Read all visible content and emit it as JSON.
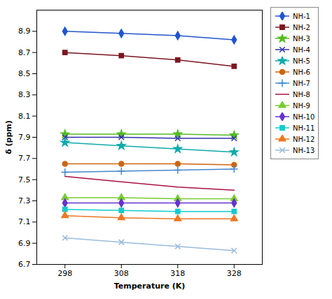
{
  "chart_data": {
    "type": "line",
    "x": [
      298,
      308,
      318,
      328
    ],
    "xlabel": "Temperature (K)",
    "ylabel": "δ (ppm)",
    "xlim": [
      293,
      333
    ],
    "xticks": [
      298,
      308,
      318,
      328
    ],
    "ylim": [
      6.7,
      9.1
    ],
    "yticks": [
      6.7,
      6.9,
      7.1,
      7.3,
      7.5,
      7.7,
      7.9,
      8.1,
      8.3,
      8.5,
      8.7,
      8.9
    ],
    "grid": false,
    "legend": "upper right",
    "series": [
      {
        "name": "NH-1",
        "color": "#2255CC",
        "marker": "diamond",
        "values": [
          8.9,
          8.88,
          8.86,
          8.82
        ]
      },
      {
        "name": "NH-2",
        "color": "#7B1520",
        "marker": "square",
        "values": [
          8.7,
          8.67,
          8.63,
          8.57
        ]
      },
      {
        "name": "NH-3",
        "color": "#55BB22",
        "marker": "star",
        "values": [
          7.93,
          7.93,
          7.93,
          7.92
        ]
      },
      {
        "name": "NH-4",
        "color": "#3333AA",
        "marker": "x",
        "values": [
          7.9,
          7.9,
          7.89,
          7.89
        ]
      },
      {
        "name": "NH-5",
        "color": "#11AAAA",
        "marker": "star",
        "values": [
          7.85,
          7.82,
          7.79,
          7.76
        ]
      },
      {
        "name": "NH-6",
        "color": "#CC6611",
        "marker": "circle",
        "values": [
          7.65,
          7.65,
          7.65,
          7.64
        ]
      },
      {
        "name": "NH-7",
        "color": "#4488CC",
        "marker": "plus",
        "values": [
          7.57,
          7.58,
          7.59,
          7.6
        ]
      },
      {
        "name": "NH-8",
        "color": "#AA1144",
        "marker": "none",
        "values": [
          7.53,
          7.48,
          7.43,
          7.4
        ]
      },
      {
        "name": "NH-9",
        "color": "#77CC33",
        "marker": "triangle",
        "values": [
          7.33,
          7.33,
          7.32,
          7.32
        ]
      },
      {
        "name": "NH-10",
        "color": "#6633CC",
        "marker": "diamond",
        "values": [
          7.28,
          7.28,
          7.28,
          7.28
        ]
      },
      {
        "name": "NH-11",
        "color": "#11CCCC",
        "marker": "square",
        "values": [
          7.22,
          7.21,
          7.2,
          7.2
        ]
      },
      {
        "name": "NH-12",
        "color": "#EE7722",
        "marker": "triangle",
        "values": [
          7.16,
          7.14,
          7.13,
          7.13
        ]
      },
      {
        "name": "NH-13",
        "color": "#99BBDD",
        "marker": "x",
        "values": [
          6.95,
          6.91,
          6.87,
          6.83
        ]
      }
    ]
  }
}
